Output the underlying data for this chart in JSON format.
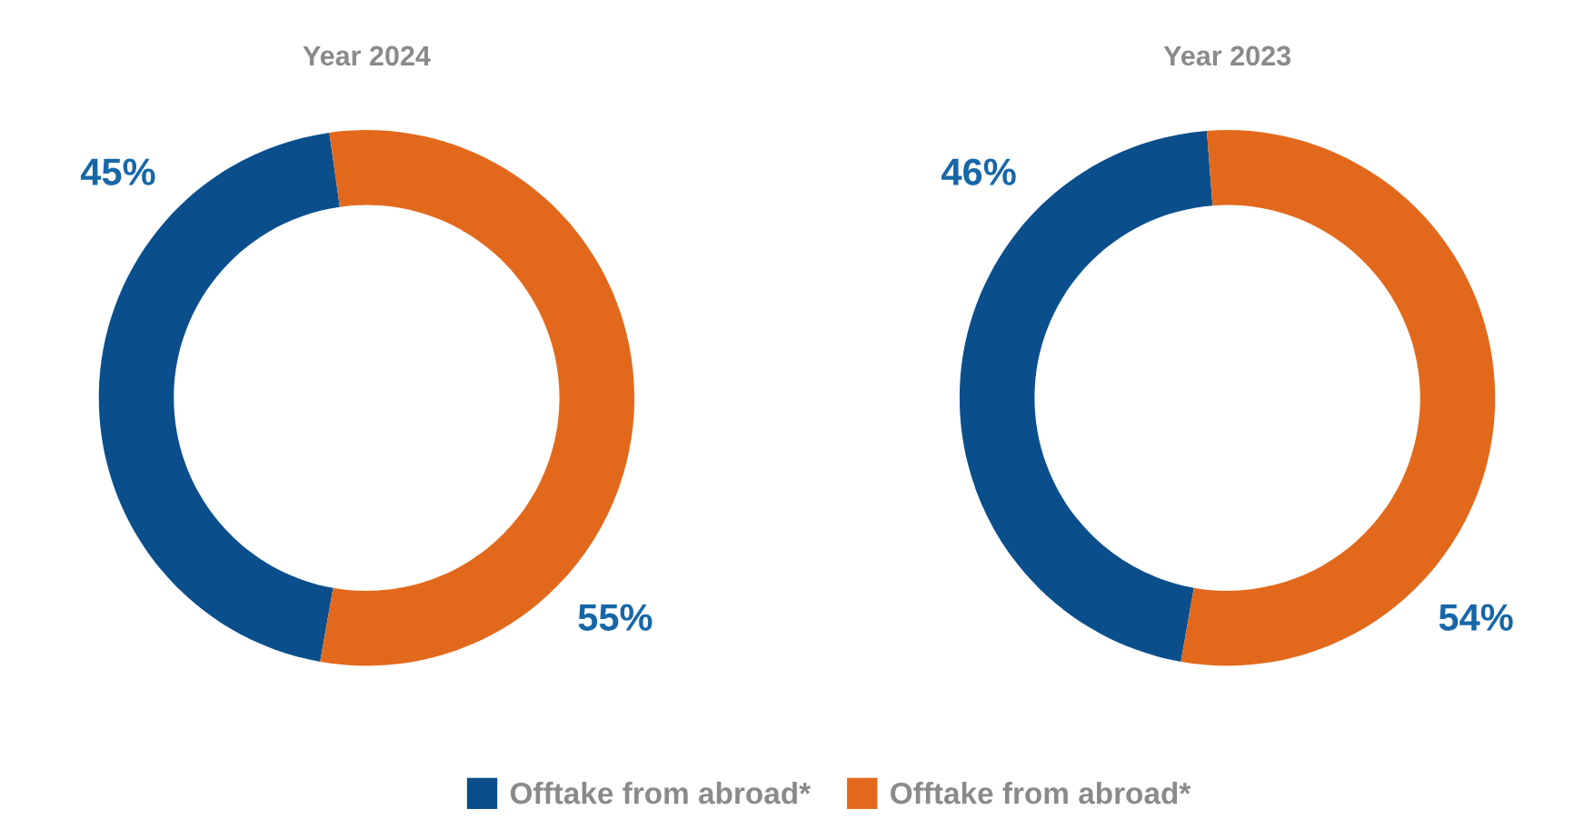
{
  "chart_data": [
    {
      "type": "donut",
      "title": "Year 2024",
      "categories": [
        "Offtake from abroad*",
        "Offtake from abroad*"
      ],
      "values": [
        45,
        55
      ],
      "value_labels": [
        "45%",
        "55%"
      ],
      "colors": [
        "#0a4f8c",
        "#e2691c"
      ],
      "legend": "bottom"
    },
    {
      "type": "donut",
      "title": "Year 2023",
      "categories": [
        null,
        null
      ],
      "values": [
        46,
        54
      ],
      "value_labels": [
        "46%",
        "54%"
      ],
      "colors": [
        "#0a4f8c",
        "#e2691c"
      ]
    }
  ]
}
